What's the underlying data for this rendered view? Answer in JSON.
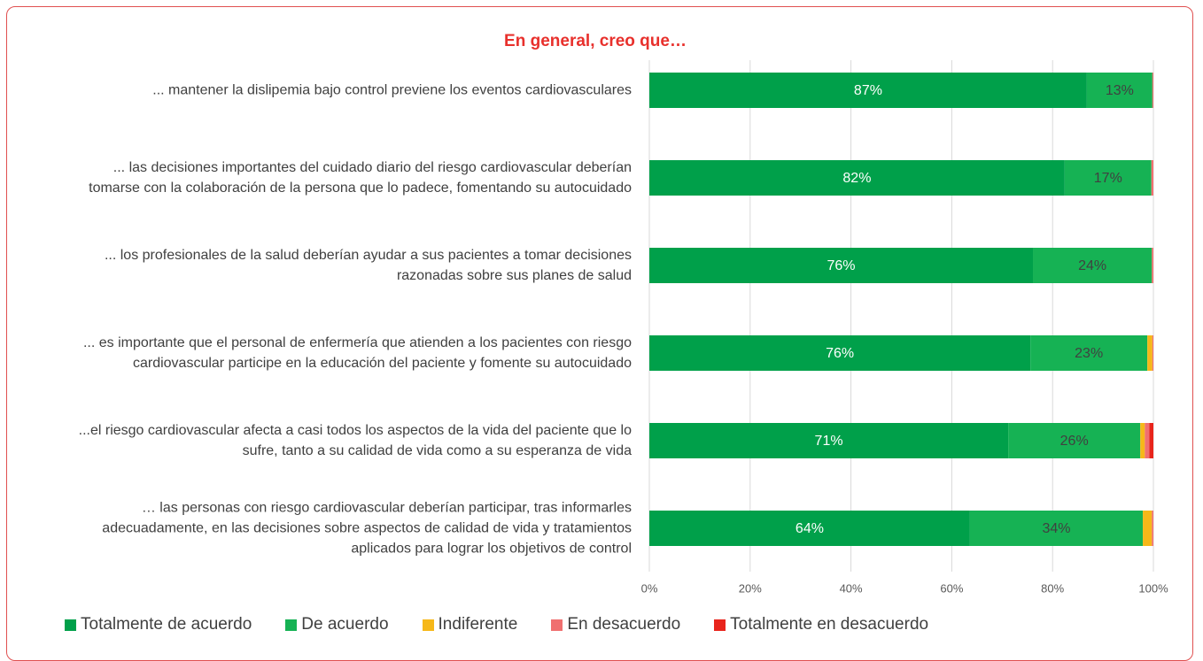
{
  "chart_data": {
    "type": "stacked_barh",
    "title": "En general, creo que…",
    "categories": [
      "... mantener la dislipemia bajo control previene los eventos cardiovasculares",
      "... las decisiones importantes del cuidado diario del riesgo cardiovascular deberían tomarse con la colaboración de la persona que lo padece, fomentando su autocuidado",
      "... los profesionales de la salud deberían ayudar a sus pacientes a tomar decisiones razonadas sobre sus planes de salud",
      "... es importante que el personal de enfermería que atienden a los pacientes con riesgo cardiovascular participe en la educación del paciente y fomente su autocuidado",
      "...el riesgo cardiovascular afecta a casi todos los aspectos de la vida del paciente que lo sufre, tanto a su calidad de vida como a su esperanza de vida",
      "… las personas con riesgo cardiovascular deberían participar, tras informarles adecuadamente, en las decisiones sobre aspectos de calidad de vida y tratamientos aplicados para lograr los objetivos de control"
    ],
    "series": [
      {
        "name": "Totalmente de acuerdo",
        "color": "#00a04a",
        "values": [
          86.8,
          82.4,
          76.1,
          75.6,
          71.2,
          63.6
        ],
        "value_labels": [
          "87%",
          "82%",
          "76%",
          "76%",
          "71%",
          "64%"
        ]
      },
      {
        "name": "De acuerdo",
        "color": "#16b254",
        "values": [
          13.0,
          17.2,
          23.6,
          23.2,
          26.2,
          34.3
        ],
        "value_labels": [
          "13%",
          "17%",
          "24%",
          "23%",
          "26%",
          "34%"
        ]
      },
      {
        "name": "Indiferente",
        "color": "#f6b819",
        "values": [
          0,
          0,
          0,
          1.0,
          0.9,
          1.8
        ]
      },
      {
        "name": "En desacuerdo",
        "color": "#f07070",
        "values": [
          0.2,
          0.4,
          0.3,
          0.2,
          0.9,
          0.3
        ]
      },
      {
        "name": "Totalmente en desacuerdo",
        "color": "#e8241c",
        "values": [
          0,
          0,
          0,
          0,
          0.8,
          0
        ]
      }
    ],
    "xlim": [
      0,
      100
    ],
    "xticks": [
      {
        "value": 0,
        "label": "0%"
      },
      {
        "value": 20,
        "label": "20%"
      },
      {
        "value": 40,
        "label": "40%"
      },
      {
        "value": 60,
        "label": "60%"
      },
      {
        "value": 80,
        "label": "80%"
      },
      {
        "value": 100,
        "label": "100%"
      }
    ],
    "grid": true,
    "legend": "bottom"
  }
}
